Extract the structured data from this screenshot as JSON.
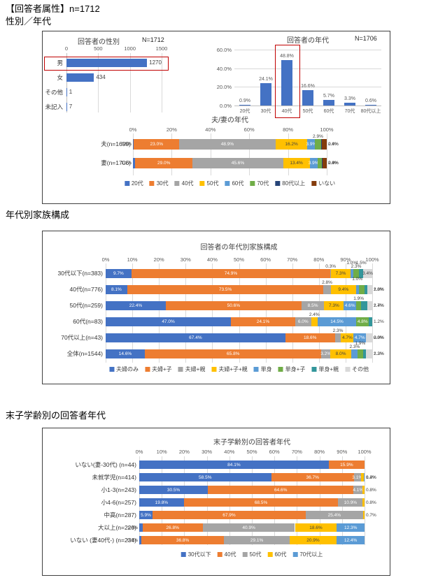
{
  "page": {
    "heading1": "【回答者属性】n=1712",
    "heading2": "性別／年代",
    "heading3": "年代別家族構成",
    "heading4": "末子学齢別の回答者年代"
  },
  "colors": {
    "bar_blue": "#4472C4",
    "highlight_red": "#C00000",
    "grid_gray": "#D9D9D9"
  },
  "chart_data": [
    {
      "id": "gender",
      "type": "bar",
      "orientation": "horizontal",
      "title": "回答者の性別",
      "n_label": "N=1712",
      "categories": [
        "男",
        "女",
        "その他",
        "未記入"
      ],
      "values": [
        1270,
        434,
        1,
        7
      ],
      "value_labels": [
        "1270",
        "434",
        "1",
        "7"
      ],
      "xlim": [
        0,
        1500
      ],
      "xticks": [
        "0",
        "500",
        "1000",
        "1500"
      ],
      "bar_color": "#4472C4",
      "highlighted_category": "男"
    },
    {
      "id": "age",
      "type": "column",
      "title": "回答者の年代",
      "n_label": "N=1706",
      "categories": [
        "20代",
        "30代",
        "40代",
        "50代",
        "60代",
        "70代",
        "80代以上"
      ],
      "values": [
        0.9,
        24.1,
        48.8,
        16.6,
        5.7,
        3.3,
        0.6
      ],
      "value_labels": [
        "0.9%",
        "24.1%",
        "48.8%",
        "16.6%",
        "5.7%",
        "3.3%",
        "0.6%"
      ],
      "ylim": [
        0,
        60
      ],
      "ytick_values": [
        60,
        40,
        20,
        0
      ],
      "yticks": [
        "60.0%",
        "40.0%",
        "20.0%",
        "0.0%"
      ],
      "bar_color": "#4472C4",
      "highlighted_category": "40代"
    },
    {
      "id": "spouse",
      "type": "stacked-bar",
      "title": "夫/妻の年代",
      "series": [
        "20代",
        "30代",
        "40代",
        "50代",
        "60代",
        "70代",
        "80代以上",
        "いない"
      ],
      "series_colors": [
        "#4472C4",
        "#ED7D31",
        "#A5A5A5",
        "#FFC000",
        "#5B9BD5",
        "#70AD47",
        "#264478",
        "#843C0C"
      ],
      "xticks": [
        "0%",
        "20%",
        "40%",
        "60%",
        "80%",
        "100%"
      ],
      "rows": [
        {
          "label": "夫(n=1699)",
          "values": [
            0.5,
            23.0,
            48.9,
            16.2,
            3.9,
            2.9,
            0.4,
            2.6
          ],
          "labels": [
            "0.5%",
            "23.0%",
            "48.9%",
            "16.2%",
            "3.9%",
            "2.9%",
            "0.4%",
            "2.6%"
          ]
        },
        {
          "label": "妻(n=1706)",
          "values": [
            1.1,
            29.0,
            45.6,
            13.4,
            3.9,
            2.3,
            0.4,
            2.0
          ],
          "labels": [
            "1.1%",
            "29.0%",
            "45.6%",
            "13.4%",
            "3.9%",
            "2.3%",
            "0.4%",
            "2.0%"
          ]
        }
      ]
    },
    {
      "id": "family",
      "type": "stacked-bar",
      "title": "回答者の年代別家族構成",
      "series": [
        "夫婦のみ",
        "夫婦+子",
        "夫婦+親",
        "夫婦+子+親",
        "単身",
        "単身+子",
        "単身+親",
        "その他"
      ],
      "series_colors": [
        "#4472C4",
        "#ED7D31",
        "#A5A5A5",
        "#FFC000",
        "#5B9BD5",
        "#70AD47",
        "#33969B",
        "#D9D9D9"
      ],
      "xticks": [
        "0%",
        "10%",
        "20%",
        "30%",
        "40%",
        "50%",
        "60%",
        "70%",
        "80%",
        "90%",
        "100%"
      ],
      "rows": [
        {
          "label": "30代以下(n=383)",
          "values": [
            9.7,
            74.9,
            0.3,
            7.3,
            1.0,
            2.3,
            1.5,
            3.4
          ],
          "labels": [
            "9.7%",
            "74.9%",
            "0.3%",
            "7.3%",
            "1.0%",
            "2.3%",
            "1.5%",
            "3.4%"
          ]
        },
        {
          "label": "40代(n=776)",
          "values": [
            8.1,
            73.5,
            2.8,
            9.4,
            1.0,
            2.3,
            1.0,
            1.8
          ],
          "labels": [
            "8.1%",
            "73.5%",
            "2.8%",
            "9.4%",
            "1.0%",
            "2.3%",
            "1.0%",
            "1.8%"
          ]
        },
        {
          "label": "50代(n=259)",
          "values": [
            22.4,
            50.6,
            8.5,
            7.3,
            4.6,
            1.9,
            2.4,
            1.7
          ],
          "labels": [
            "22.4%",
            "50.6%",
            "8.5%",
            "7.3%",
            "4.6%",
            "1.9%",
            "2.4%",
            "1.7%"
          ]
        },
        {
          "label": "60代(n=83)",
          "values": [
            47.0,
            24.1,
            6.0,
            2.4,
            14.5,
            4.8,
            1.2,
            0.0
          ],
          "labels": [
            "47.0%",
            "24.1%",
            "6.0%",
            "2.4%",
            "14.5%",
            "4.8%",
            "1.2%",
            ""
          ]
        },
        {
          "label": "70代以上(n=43)",
          "values": [
            67.4,
            18.6,
            2.3,
            4.7,
            4.7,
            0.0,
            0.0,
            2.3
          ],
          "labels": [
            "67.4%",
            "18.6%",
            "2.3%",
            "4.7%",
            "4.7%",
            "0.0%",
            "0.0%",
            "2.3%"
          ]
        },
        {
          "label": "全体(n=1544)",
          "values": [
            14.6,
            65.8,
            3.2,
            8.0,
            2.3,
            1.9,
            1.2,
            2.3
          ],
          "labels": [
            "14.6%",
            "65.8%",
            "3.2%",
            "8.0%",
            "2.3%",
            "1.9%",
            "1.2%",
            "2.3%"
          ]
        }
      ]
    },
    {
      "id": "school",
      "type": "stacked-bar",
      "title": "末子学齢別の回答者年代",
      "series": [
        "30代以下",
        "40代",
        "50代",
        "60代",
        "70代以上"
      ],
      "series_colors": [
        "#4472C4",
        "#ED7D31",
        "#A5A5A5",
        "#FFC000",
        "#5B9BD5"
      ],
      "xticks": [
        "0%",
        "10%",
        "20%",
        "30%",
        "40%",
        "50%",
        "60%",
        "70%",
        "80%",
        "90%",
        "100%"
      ],
      "rows": [
        {
          "label": "いない(妻-30代) (n=44)",
          "values": [
            84.1,
            15.9,
            0,
            0,
            0
          ],
          "labels": [
            "84.1%",
            "15.9%",
            "",
            "",
            ""
          ]
        },
        {
          "label": "未就学児(n=414)",
          "values": [
            58.5,
            36.7,
            3.1,
            1.4,
            0.2
          ],
          "labels": [
            "58.5%",
            "36.7%",
            "3.1%",
            "1.4%",
            "0.2%"
          ]
        },
        {
          "label": "小1-3(n=243)",
          "values": [
            30.5,
            64.6,
            4.1,
            0.8,
            0
          ],
          "labels": [
            "30.5%",
            "64.6%",
            "4.1%",
            "0.8%",
            ""
          ]
        },
        {
          "label": "小4-6(n=257)",
          "values": [
            19.8,
            68.5,
            10.9,
            0.8,
            0
          ],
          "labels": [
            "19.8%",
            "68.5%",
            "10.9%",
            "0.8%",
            ""
          ]
        },
        {
          "label": "中高(n=287)",
          "values": [
            5.9,
            67.9,
            25.4,
            0.7,
            0
          ],
          "labels": [
            "5.9%",
            "67.9%",
            "25.4%",
            "0.7%",
            ""
          ]
        },
        {
          "label": "大以上(n=220)",
          "values": [
            1.4,
            26.8,
            40.9,
            18.6,
            12.3
          ],
          "labels": [
            "1.4%",
            "26.8%",
            "40.9%",
            "18.6%",
            "12.3%"
          ]
        },
        {
          "label": "いない (妻40代-) (n=234)",
          "values": [
            0.9,
            36.8,
            29.1,
            20.9,
            12.4
          ],
          "labels": [
            "0.9%",
            "36.8%",
            "29.1%",
            "20.9%",
            "12.4%"
          ]
        }
      ]
    }
  ]
}
